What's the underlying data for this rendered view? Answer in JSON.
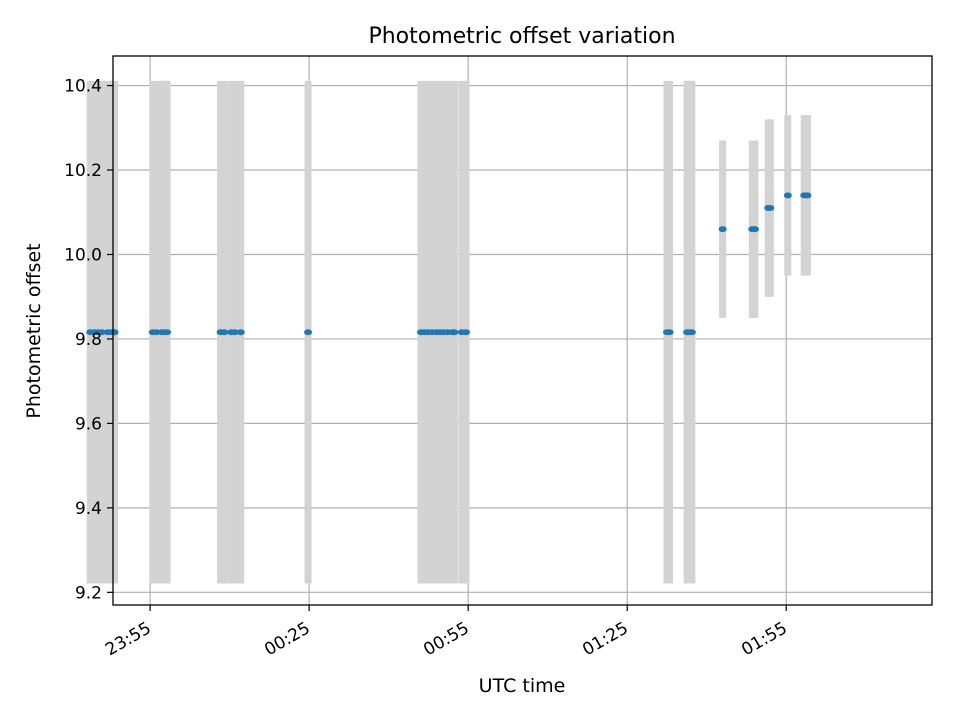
{
  "chart_data": {
    "type": "scatter",
    "title": "Photometric offset variation",
    "xlabel": "UTC time",
    "ylabel": "Photometric offset",
    "x_unit": "minutes after 00:00 UTC (negative = previous day)",
    "xlim": [
      -12.0,
      142.5
    ],
    "ylim": [
      9.17,
      10.47
    ],
    "x_ticks": [
      -5,
      25,
      55,
      85,
      115
    ],
    "x_tick_labels": [
      "23:55",
      "00:25",
      "00:55",
      "01:25",
      "01:55"
    ],
    "y_ticks": [
      9.2,
      9.4,
      9.6,
      9.8,
      10.0,
      10.2,
      10.4
    ],
    "y_tick_labels": [
      "9.2",
      "9.4",
      "9.6",
      "9.8",
      "10.0",
      "10.2",
      "10.4"
    ],
    "grid": true,
    "marker_color": "#1f77b4",
    "errorbar_color": "#d3d3d3",
    "points": [
      {
        "x": -16.3,
        "y": 9.816,
        "err": 0.595
      },
      {
        "x": -15.5,
        "y": 9.816,
        "err": 0.595
      },
      {
        "x": -14.8,
        "y": 9.816,
        "err": 0.595
      },
      {
        "x": -14.1,
        "y": 9.816,
        "err": 0.595
      },
      {
        "x": -13.0,
        "y": 9.816,
        "err": 0.595
      },
      {
        "x": -12.4,
        "y": 9.816,
        "err": 0.595
      },
      {
        "x": -11.7,
        "y": 9.816,
        "err": 0.595
      },
      {
        "x": -4.5,
        "y": 9.816,
        "err": 0.595
      },
      {
        "x": -3.8,
        "y": 9.816,
        "err": 0.595
      },
      {
        "x": -2.8,
        "y": 9.816,
        "err": 0.595
      },
      {
        "x": -2.3,
        "y": 9.816,
        "err": 0.595
      },
      {
        "x": -1.8,
        "y": 9.816,
        "err": 0.595
      },
      {
        "x": 8.3,
        "y": 9.816,
        "err": 0.595
      },
      {
        "x": 9.0,
        "y": 9.816,
        "err": 0.595
      },
      {
        "x": 10.3,
        "y": 9.816,
        "err": 0.595
      },
      {
        "x": 11.0,
        "y": 9.816,
        "err": 0.595
      },
      {
        "x": 12.1,
        "y": 9.816,
        "err": 0.595
      },
      {
        "x": 24.8,
        "y": 9.816,
        "err": 0.595
      },
      {
        "x": 46.1,
        "y": 9.816,
        "err": 0.595
      },
      {
        "x": 46.8,
        "y": 9.816,
        "err": 0.595
      },
      {
        "x": 47.5,
        "y": 9.816,
        "err": 0.595
      },
      {
        "x": 48.2,
        "y": 9.816,
        "err": 0.595
      },
      {
        "x": 49.0,
        "y": 9.816,
        "err": 0.595
      },
      {
        "x": 49.7,
        "y": 9.816,
        "err": 0.595
      },
      {
        "x": 50.3,
        "y": 9.816,
        "err": 0.595
      },
      {
        "x": 51.1,
        "y": 9.816,
        "err": 0.595
      },
      {
        "x": 52.0,
        "y": 9.816,
        "err": 0.595
      },
      {
        "x": 52.4,
        "y": 9.816,
        "err": 0.595
      },
      {
        "x": 53.8,
        "y": 9.816,
        "err": 0.595
      },
      {
        "x": 54.6,
        "y": 9.816,
        "err": 0.595
      },
      {
        "x": 92.5,
        "y": 9.816,
        "err": 0.595
      },
      {
        "x": 93.0,
        "y": 9.816,
        "err": 0.595
      },
      {
        "x": 96.3,
        "y": 9.816,
        "err": 0.595
      },
      {
        "x": 96.8,
        "y": 9.816,
        "err": 0.595
      },
      {
        "x": 97.2,
        "y": 9.816,
        "err": 0.595
      },
      {
        "x": 103.0,
        "y": 10.06,
        "err": 0.21
      },
      {
        "x": 108.6,
        "y": 10.06,
        "err": 0.21
      },
      {
        "x": 109.1,
        "y": 10.06,
        "err": 0.21
      },
      {
        "x": 111.6,
        "y": 10.11,
        "err": 0.21
      },
      {
        "x": 112.0,
        "y": 10.11,
        "err": 0.21
      },
      {
        "x": 115.3,
        "y": 10.14,
        "err": 0.19
      },
      {
        "x": 118.4,
        "y": 10.14,
        "err": 0.19
      },
      {
        "x": 119.0,
        "y": 10.14,
        "err": 0.19
      }
    ]
  }
}
